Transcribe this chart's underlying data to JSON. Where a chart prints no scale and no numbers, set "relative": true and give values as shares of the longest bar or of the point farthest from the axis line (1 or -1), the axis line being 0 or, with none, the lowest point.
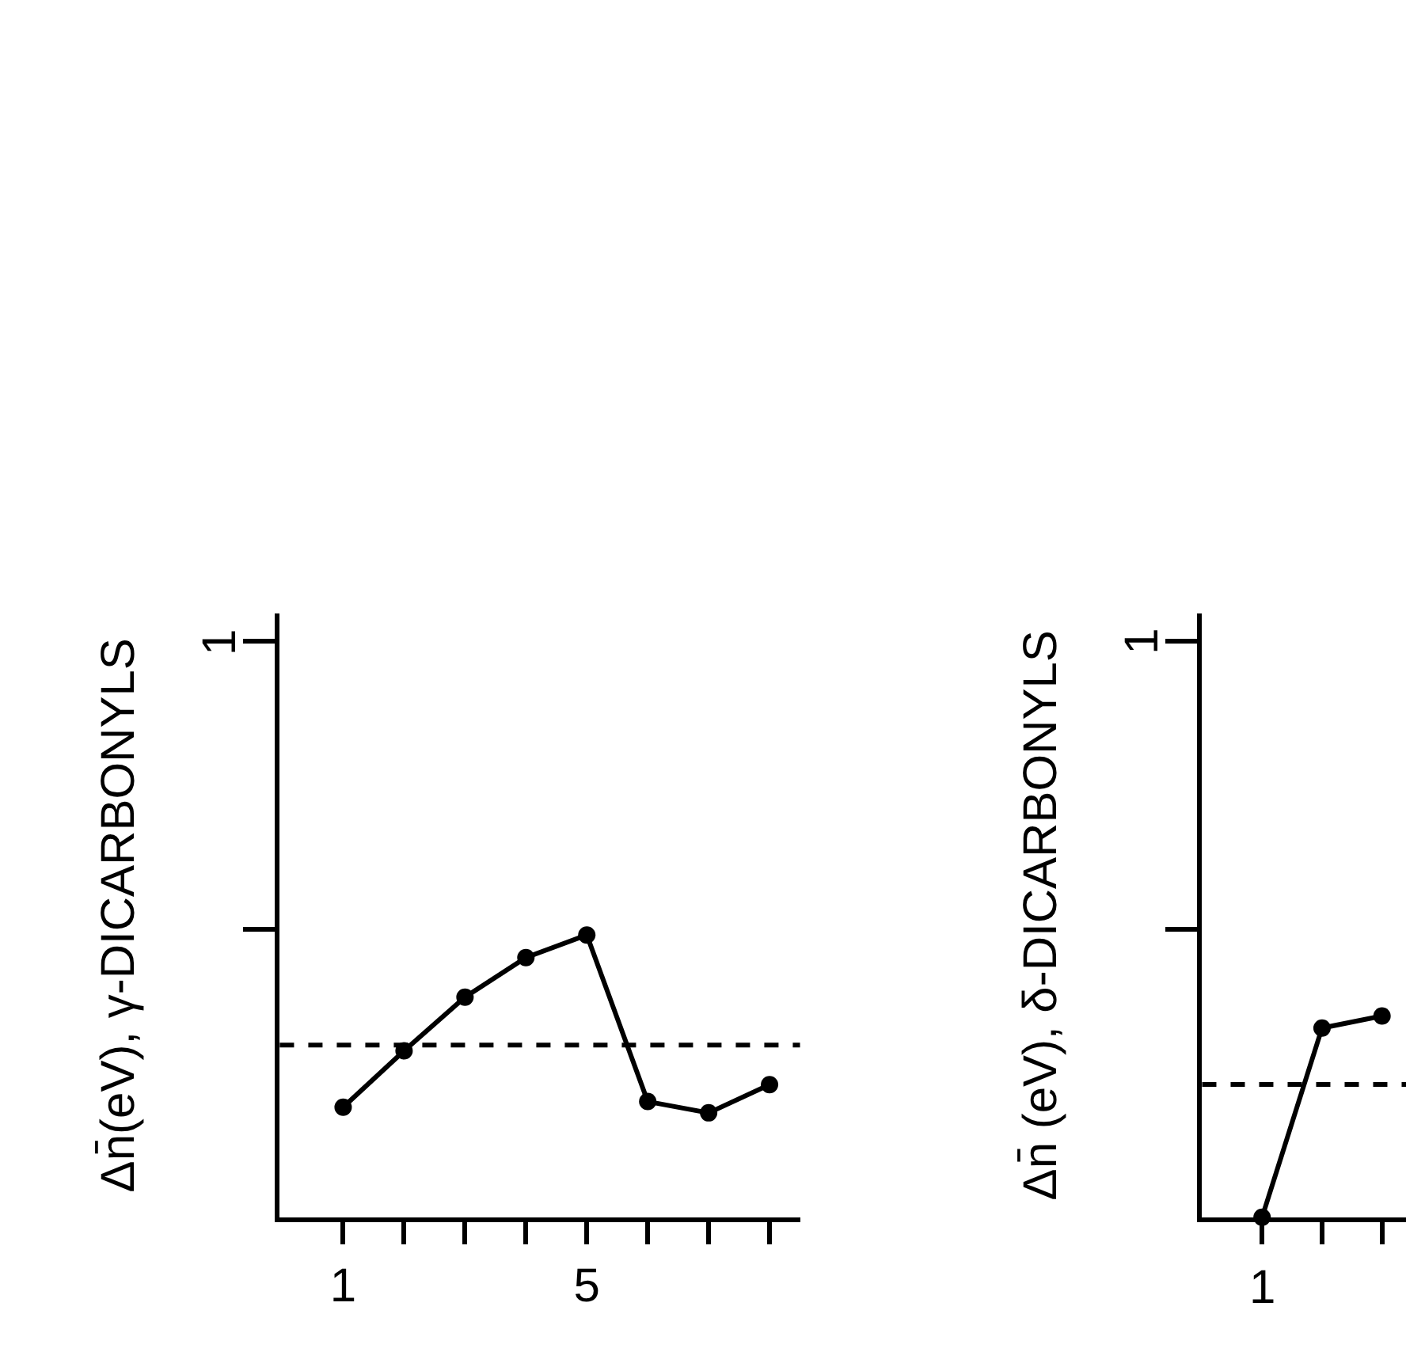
{
  "chart_data": [
    {
      "type": "line",
      "ylabel": "Δn̄(eV), γ-DICARBONYLS",
      "categories": [
        "1",
        null,
        null,
        null,
        "5",
        null,
        null,
        null
      ],
      "relative": true,
      "series": [
        {
          "color": "#000000",
          "values": [
            0.39,
            0.59,
            0.78,
            0.92,
            1,
            0.41,
            0.37,
            0.47
          ]
        }
      ],
      "ref_lines": [
        {
          "axis": "y",
          "value": 0.61,
          "line_style": "dashed",
          "color": "#000000"
        }
      ],
      "annotations": [
        "1"
      ],
      "marker": "circle",
      "line_style": "solid"
    },
    {
      "type": "line",
      "ylabel": "Δn̄ (eV), δ-DICARBONYLS",
      "categories": [
        null,
        null,
        null
      ],
      "relative": true,
      "series": [
        {
          "color": "#000000",
          "values": [
            0,
            0.94,
            1
          ]
        }
      ],
      "ref_lines": [
        {
          "axis": "y",
          "value": 0.66,
          "line_style": "dashed",
          "color": "#000000"
        }
      ],
      "annotations": [
        "1",
        "1"
      ],
      "marker": "circle",
      "line_style": "solid"
    }
  ]
}
